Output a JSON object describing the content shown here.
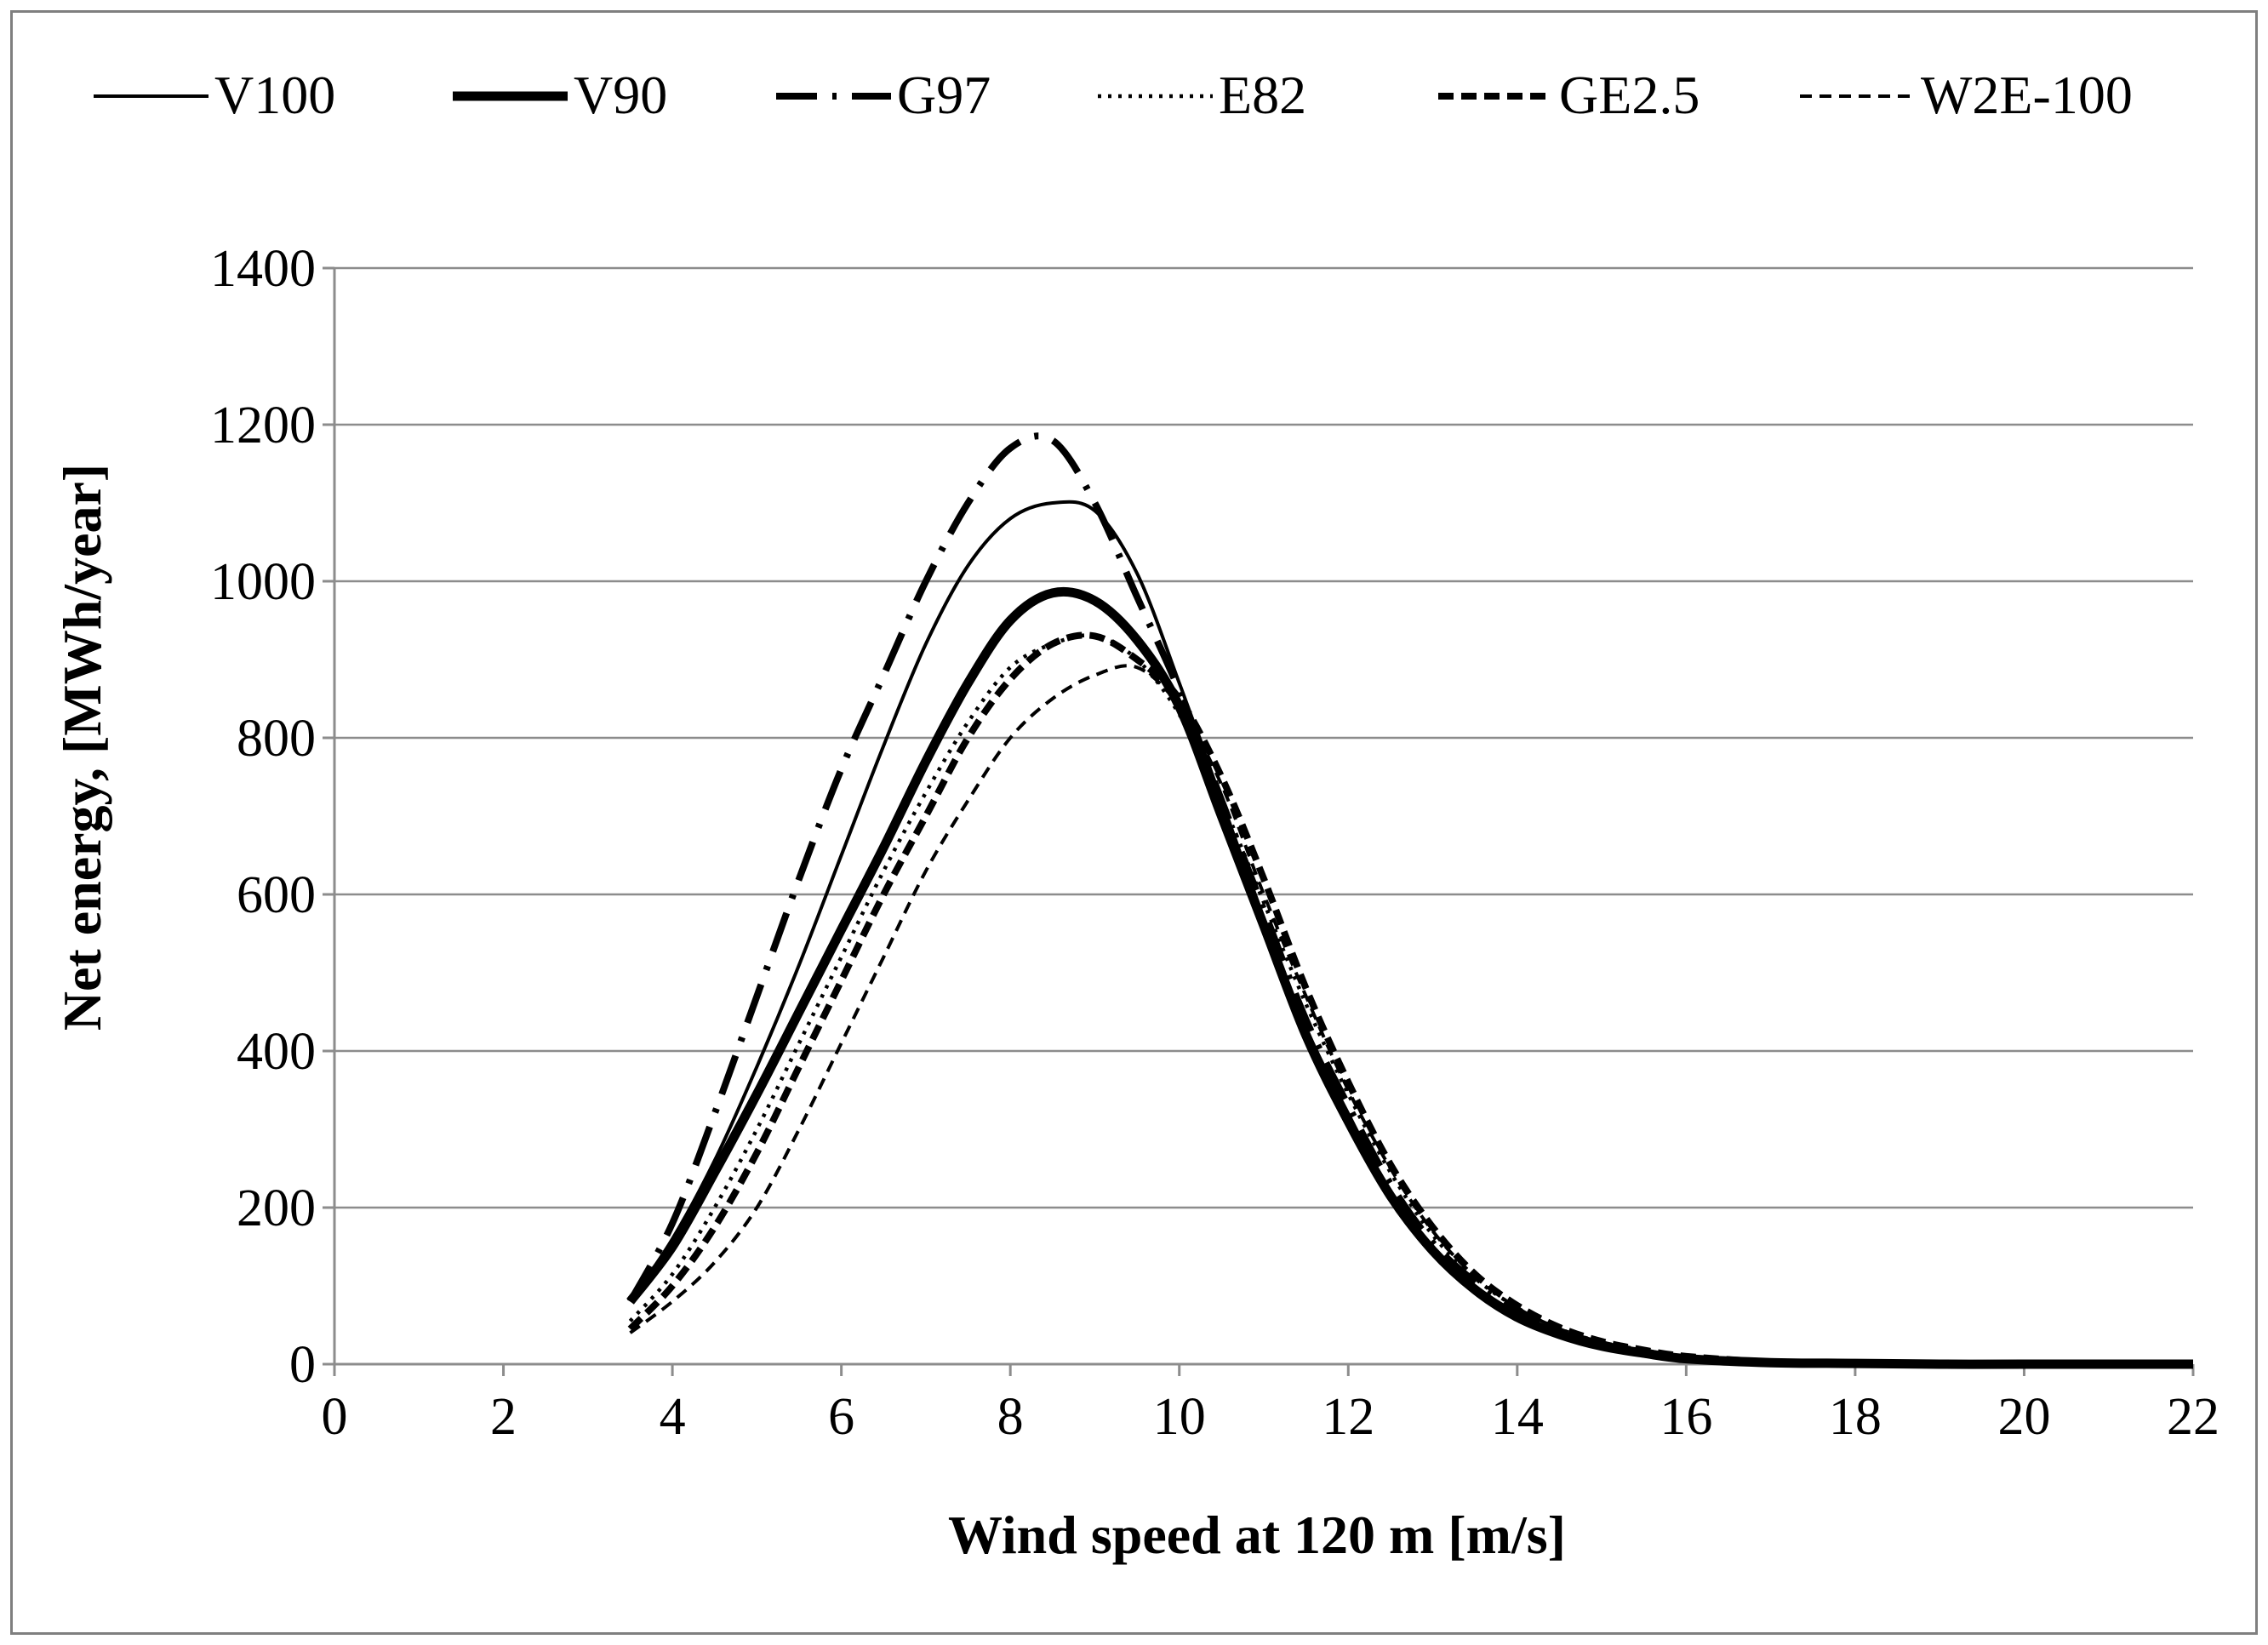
{
  "chart_data": {
    "type": "line",
    "title": "",
    "xlabel": "Wind speed at 120 m [m/s]",
    "ylabel": "Net energy, [MWh/year]",
    "xlim": [
      0,
      22
    ],
    "ylim": [
      0,
      1400
    ],
    "x_ticks": [
      0,
      2,
      4,
      6,
      8,
      10,
      12,
      14,
      16,
      18,
      20,
      22
    ],
    "y_ticks": [
      0,
      200,
      400,
      600,
      800,
      1000,
      1200,
      1400
    ],
    "grid": "horizontal",
    "legend_position": "top",
    "x": [
      3.5,
      4,
      4.5,
      5,
      5.5,
      6,
      6.5,
      7,
      7.5,
      8,
      8.5,
      9,
      9.5,
      10,
      10.5,
      11,
      11.5,
      12,
      12.5,
      13,
      13.5,
      14,
      14.5,
      15,
      15.5,
      16,
      17,
      18,
      19,
      20,
      21,
      22
    ],
    "series": [
      {
        "name": "V100",
        "style": "solid-thin",
        "values": [
          80,
          160,
          260,
          380,
          510,
          650,
          790,
          920,
          1020,
          1080,
          1100,
          1090,
          1010,
          870,
          720,
          570,
          430,
          320,
          220,
          150,
          100,
          65,
          40,
          25,
          15,
          8,
          3,
          1,
          0,
          0,
          0,
          0
        ]
      },
      {
        "name": "V90",
        "style": "solid-thick",
        "values": [
          80,
          150,
          245,
          345,
          450,
          555,
          660,
          770,
          870,
          950,
          985,
          975,
          925,
          840,
          700,
          560,
          420,
          310,
          215,
          145,
          95,
          60,
          38,
          23,
          14,
          7,
          2,
          1,
          0,
          0,
          0,
          0
        ]
      },
      {
        "name": "G97",
        "style": "dash-dot",
        "values": [
          80,
          180,
          320,
          470,
          620,
          760,
          880,
          1000,
          1100,
          1170,
          1180,
          1100,
          980,
          860,
          720,
          580,
          440,
          330,
          230,
          155,
          105,
          68,
          42,
          26,
          16,
          8,
          3,
          1,
          0,
          0,
          0,
          0
        ]
      },
      {
        "name": "E82",
        "style": "dotted",
        "values": [
          55,
          115,
          200,
          300,
          410,
          520,
          630,
          730,
          820,
          890,
          920,
          930,
          900,
          830,
          720,
          590,
          460,
          345,
          245,
          165,
          110,
          72,
          45,
          28,
          17,
          9,
          3,
          1,
          0,
          0,
          0,
          0
        ]
      },
      {
        "name": "GE2.5",
        "style": "dashed-thick",
        "values": [
          45,
          100,
          175,
          270,
          380,
          490,
          600,
          700,
          800,
          875,
          920,
          930,
          900,
          850,
          750,
          620,
          480,
          360,
          255,
          175,
          115,
          75,
          47,
          29,
          18,
          10,
          3,
          1,
          0,
          0,
          0,
          0
        ]
      },
      {
        "name": "W2E-100",
        "style": "dashed-thin",
        "values": [
          40,
          80,
          130,
          200,
          300,
          410,
          520,
          630,
          720,
          800,
          850,
          880,
          890,
          840,
          740,
          600,
          470,
          350,
          250,
          170,
          112,
          72,
          45,
          28,
          17,
          9,
          3,
          1,
          0,
          0,
          0,
          0
        ]
      }
    ]
  }
}
